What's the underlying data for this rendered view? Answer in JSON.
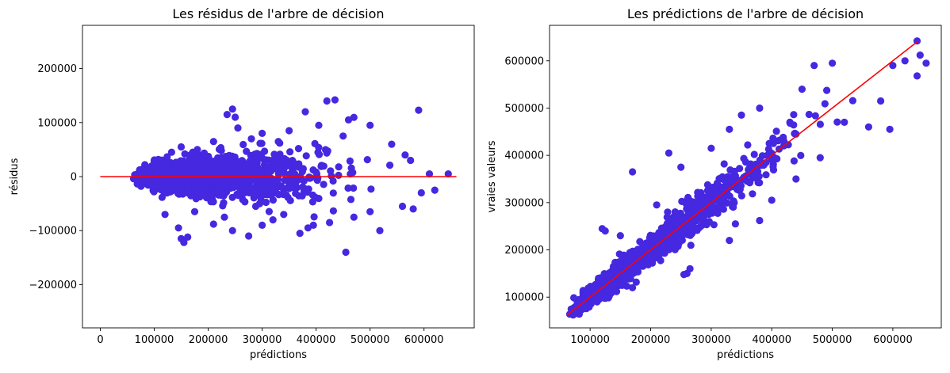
{
  "chart_data": [
    {
      "type": "scatter",
      "title": "Les résidus de l'arbre de décision",
      "xlabel": "prédictions",
      "ylabel": "résidus",
      "xlim": [
        -33000,
        693000
      ],
      "ylim": [
        -280000,
        280000
      ],
      "xticks": [
        0,
        100000,
        200000,
        300000,
        400000,
        500000,
        600000
      ],
      "xtick_labels": [
        "0",
        "100000",
        "200000",
        "300000",
        "400000",
        "500000",
        "600000"
      ],
      "yticks": [
        -200000,
        -100000,
        0,
        100000,
        200000
      ],
      "ytick_labels": [
        "−200000",
        "−100000",
        "0",
        "100000",
        "200000"
      ],
      "grid": false,
      "point_color": "#4528e0",
      "line_color": "#ff0000",
      "reference_line": {
        "x": [
          0,
          660000
        ],
        "y": [
          0,
          0
        ]
      },
      "points": [
        [
          150000,
          -115000
        ],
        [
          155000,
          -122000
        ],
        [
          162000,
          -112000
        ],
        [
          145000,
          -95000
        ],
        [
          210000,
          -88000
        ],
        [
          245000,
          -100000
        ],
        [
          275000,
          -110000
        ],
        [
          300000,
          -90000
        ],
        [
          370000,
          -105000
        ],
        [
          385000,
          -95000
        ],
        [
          395000,
          -90000
        ],
        [
          455000,
          -140000
        ],
        [
          470000,
          -75000
        ],
        [
          500000,
          -65000
        ],
        [
          560000,
          -55000
        ],
        [
          580000,
          -60000
        ],
        [
          620000,
          -25000
        ],
        [
          595000,
          -30000
        ],
        [
          120000,
          -70000
        ],
        [
          175000,
          -65000
        ],
        [
          230000,
          -75000
        ],
        [
          320000,
          -80000
        ],
        [
          340000,
          -70000
        ],
        [
          425000,
          -85000
        ],
        [
          235000,
          115000
        ],
        [
          245000,
          125000
        ],
        [
          250000,
          110000
        ],
        [
          380000,
          120000
        ],
        [
          420000,
          140000
        ],
        [
          435000,
          142000
        ],
        [
          500000,
          95000
        ],
        [
          590000,
          123000
        ],
        [
          460000,
          105000
        ],
        [
          405000,
          95000
        ],
        [
          350000,
          85000
        ],
        [
          300000,
          80000
        ],
        [
          255000,
          90000
        ],
        [
          540000,
          60000
        ],
        [
          565000,
          40000
        ],
        [
          575000,
          30000
        ],
        [
          610000,
          5000
        ],
        [
          645000,
          5000
        ],
        [
          150000,
          55000
        ],
        [
          180000,
          50000
        ],
        [
          210000,
          65000
        ],
        [
          280000,
          70000
        ],
        [
          330000,
          65000
        ],
        [
          450000,
          75000
        ]
      ],
      "cloud": {
        "x_range": [
          60000,
          560000
        ],
        "note": "dense cloud around zero"
      }
    },
    {
      "type": "scatter",
      "title": "Les prédictions de l'arbre de décision",
      "xlabel": "prédictions",
      "ylabel": "vraies valeurs",
      "xlim": [
        33000,
        680000
      ],
      "ylim": [
        35000,
        675000
      ],
      "xticks": [
        100000,
        200000,
        300000,
        400000,
        500000,
        600000
      ],
      "xtick_labels": [
        "100000",
        "200000",
        "300000",
        "400000",
        "500000",
        "600000"
      ],
      "yticks": [
        100000,
        200000,
        300000,
        400000,
        500000,
        600000
      ],
      "ytick_labels": [
        "100000",
        "200000",
        "300000",
        "400000",
        "500000",
        "600000"
      ],
      "grid": false,
      "point_color": "#4528e0",
      "line_color": "#ff0000",
      "reference_line": {
        "x": [
          62000,
          642000
        ],
        "y": [
          62000,
          642000
        ]
      },
      "points": [
        [
          640000,
          642000
        ],
        [
          655000,
          595000
        ],
        [
          645000,
          612000
        ],
        [
          640000,
          568000
        ],
        [
          620000,
          600000
        ],
        [
          595000,
          455000
        ],
        [
          580000,
          515000
        ],
        [
          600000,
          590000
        ],
        [
          470000,
          590000
        ],
        [
          500000,
          595000
        ],
        [
          450000,
          540000
        ],
        [
          430000,
          470000
        ],
        [
          380000,
          500000
        ],
        [
          350000,
          485000
        ],
        [
          330000,
          455000
        ],
        [
          300000,
          415000
        ],
        [
          250000,
          375000
        ],
        [
          230000,
          405000
        ],
        [
          170000,
          365000
        ],
        [
          120000,
          245000
        ],
        [
          125000,
          240000
        ],
        [
          150000,
          230000
        ],
        [
          210000,
          295000
        ],
        [
          260000,
          150000
        ],
        [
          265000,
          160000
        ],
        [
          255000,
          148000
        ],
        [
          300000,
          295000
        ],
        [
          340000,
          255000
        ],
        [
          400000,
          305000
        ],
        [
          440000,
          350000
        ],
        [
          480000,
          395000
        ],
        [
          560000,
          460000
        ],
        [
          520000,
          470000
        ],
        [
          380000,
          262000
        ],
        [
          170000,
          120000
        ],
        [
          330000,
          220000
        ]
      ],
      "cloud": {
        "x_range": [
          62000,
          560000
        ],
        "note": "dense cloud along diagonal"
      }
    }
  ]
}
